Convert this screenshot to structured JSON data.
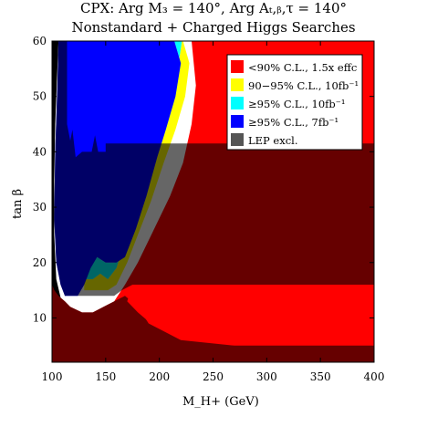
{
  "chart_data": {
    "type": "heatmap",
    "title_lines": [
      "CPX:  Arg M₃ = 140°,  Arg Aₜ,ᵦ,τ = 140°",
      "Nonstandard + Charged Higgs Searches"
    ],
    "xlabel": "M_H+ (GeV)",
    "ylabel": "tan β",
    "xlim": [
      100,
      400
    ],
    "ylim": [
      2,
      60
    ],
    "x_ticks": [
      100,
      150,
      200,
      250,
      300,
      350,
      400
    ],
    "y_ticks": [
      10,
      20,
      30,
      40,
      50,
      60
    ],
    "grid": false,
    "legend_position": "top-right",
    "legend": [
      {
        "label": "<90% C.L., 1.5x effc",
        "color": "#ff0000"
      },
      {
        "label": "90−95% C.L., 10fb⁻¹",
        "color": "#ffff00"
      },
      {
        "label": "≥95% C.L., 10fb⁻¹",
        "color": "#00ffff"
      },
      {
        "label": "≥95% C.L., 7fb⁻¹",
        "color": "#0000ff"
      },
      {
        "label": "LEP excl.",
        "color": "#555555"
      }
    ],
    "regions": [
      {
        "name": "LEP excl.",
        "color": "#000000",
        "opacity": 1.0,
        "points": [
          [
            100,
            2
          ],
          [
            100,
            60
          ],
          [
            106,
            60
          ],
          [
            105,
            55
          ],
          [
            103,
            45
          ],
          [
            102,
            35
          ],
          [
            102,
            25
          ],
          [
            104,
            17
          ],
          [
            110,
            12
          ],
          [
            120,
            9
          ],
          [
            140,
            7
          ],
          [
            170,
            5
          ],
          [
            220,
            3.5
          ],
          [
            280,
            2.8
          ],
          [
            400,
            2.5
          ],
          [
            400,
            2
          ]
        ]
      },
      {
        "name": "<90% C.L., 1.5x effc",
        "color": "#ff0000",
        "opacity": 1.0,
        "points": [
          [
            100,
            2
          ],
          [
            400,
            2
          ],
          [
            400,
            60
          ],
          [
            230,
            60
          ],
          [
            234,
            52
          ],
          [
            230,
            45
          ],
          [
            222,
            38
          ],
          [
            210,
            32
          ],
          [
            195,
            26
          ],
          [
            180,
            20
          ],
          [
            168,
            16
          ],
          [
            158,
            13
          ],
          [
            148,
            12
          ],
          [
            138,
            11
          ],
          [
            128,
            11
          ],
          [
            117,
            12
          ],
          [
            112,
            13
          ],
          [
            106,
            14
          ],
          [
            102,
            15
          ],
          [
            100,
            16
          ]
        ]
      },
      {
        "name": "90−95% C.L., 10fb⁻¹",
        "color": "#ffff00",
        "opacity": 1.0,
        "points": [
          [
            222,
            60
          ],
          [
            228,
            56
          ],
          [
            224,
            50
          ],
          [
            215,
            44
          ],
          [
            204,
            38
          ],
          [
            192,
            31
          ],
          [
            180,
            25
          ],
          [
            170,
            20
          ],
          [
            160,
            16
          ],
          [
            152,
            15
          ],
          [
            145,
            15
          ],
          [
            138,
            15
          ],
          [
            130,
            15
          ],
          [
            130,
            17
          ],
          [
            138,
            17
          ],
          [
            145,
            18
          ],
          [
            152,
            17
          ],
          [
            160,
            19
          ],
          [
            168,
            24
          ],
          [
            178,
            31
          ],
          [
            190,
            38
          ],
          [
            200,
            44
          ],
          [
            210,
            50
          ],
          [
            218,
            56
          ],
          [
            221,
            60
          ]
        ]
      },
      {
        "name": "≥95% C.L., 10fb⁻¹",
        "color": "#00ffff",
        "opacity": 1.0,
        "points": [
          [
            214,
            60
          ],
          [
            220,
            56
          ],
          [
            215,
            50
          ],
          [
            206,
            44
          ],
          [
            196,
            38
          ],
          [
            185,
            31
          ],
          [
            175,
            25
          ],
          [
            165,
            21
          ],
          [
            158,
            20
          ],
          [
            150,
            20
          ],
          [
            142,
            21
          ],
          [
            137,
            20
          ],
          [
            132,
            18
          ],
          [
            130,
            17
          ],
          [
            138,
            17
          ],
          [
            145,
            18
          ],
          [
            152,
            17
          ],
          [
            160,
            19
          ],
          [
            168,
            24
          ],
          [
            178,
            31
          ],
          [
            190,
            38
          ],
          [
            200,
            44
          ],
          [
            210,
            50
          ],
          [
            218,
            56
          ],
          [
            221,
            60
          ]
        ]
      },
      {
        "name": "≥95% C.L., 7fb⁻¹",
        "color": "#0000ff",
        "opacity": 1.0,
        "points": [
          [
            106,
            60
          ],
          [
            214,
            60
          ],
          [
            220,
            56
          ],
          [
            215,
            50
          ],
          [
            206,
            44
          ],
          [
            198,
            39
          ],
          [
            188,
            32
          ],
          [
            178,
            26
          ],
          [
            168,
            21
          ],
          [
            160,
            20
          ],
          [
            150,
            20
          ],
          [
            142,
            21
          ],
          [
            136,
            19
          ],
          [
            130,
            16
          ],
          [
            124,
            14
          ],
          [
            118,
            14
          ],
          [
            112,
            14
          ],
          [
            108,
            16
          ],
          [
            104,
            20
          ],
          [
            102,
            28
          ],
          [
            103,
            40
          ],
          [
            105,
            52
          ]
        ]
      },
      {
        "name": "upper dark overlay",
        "color": "#000000",
        "opacity": 0.6,
        "points": [
          [
            106,
            60
          ],
          [
            114,
            60
          ],
          [
            114,
            45
          ],
          [
            117,
            42
          ],
          [
            119,
            44
          ],
          [
            122,
            39
          ],
          [
            128,
            40
          ],
          [
            130,
            40
          ],
          [
            137,
            40
          ],
          [
            140,
            43
          ],
          [
            143,
            40
          ],
          [
            150,
            40
          ],
          [
            150,
            41.5
          ],
          [
            400,
            41.5
          ],
          [
            400,
            16
          ],
          [
            175,
            16
          ],
          [
            165,
            15
          ],
          [
            158,
            14
          ],
          [
            150,
            14
          ],
          [
            142,
            14
          ],
          [
            135,
            14
          ],
          [
            128,
            14
          ],
          [
            120,
            14
          ],
          [
            112,
            14
          ],
          [
            108,
            16
          ],
          [
            104,
            20
          ],
          [
            102,
            28
          ],
          [
            103,
            40
          ],
          [
            105,
            52
          ]
        ]
      },
      {
        "name": "lower dark overlay",
        "color": "#000000",
        "opacity": 0.6,
        "points": [
          [
            102,
            15
          ],
          [
            106,
            14
          ],
          [
            112,
            13
          ],
          [
            117,
            12
          ],
          [
            128,
            11
          ],
          [
            138,
            11
          ],
          [
            148,
            12
          ],
          [
            158,
            13
          ],
          [
            168,
            14
          ],
          [
            180,
            12
          ],
          [
            190,
            9
          ],
          [
            220,
            6
          ],
          [
            270,
            5
          ],
          [
            400,
            5
          ],
          [
            400,
            2
          ],
          [
            100,
            2
          ],
          [
            100,
            16
          ]
        ]
      },
      {
        "name": "red bulge",
        "color": "#ff0000",
        "opacity": 1.0,
        "points": [
          [
            175,
            16
          ],
          [
            170,
            13
          ],
          [
            180,
            11
          ],
          [
            192,
            9
          ],
          [
            220,
            7.5
          ],
          [
            270,
            6.5
          ],
          [
            400,
            6.5
          ],
          [
            400,
            16
          ]
        ]
      }
    ]
  }
}
